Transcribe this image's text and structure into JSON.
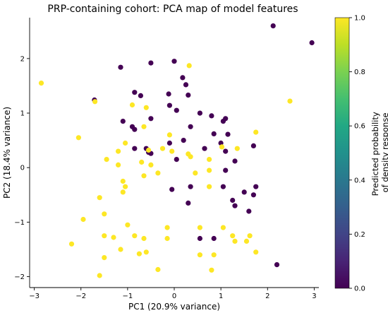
{
  "chart_data": {
    "type": "scatter",
    "title": "PRP-containing cohort: PCA map of model features",
    "xlabel": "PC1 (20.9% variance)",
    "ylabel": "PC2 (18.4% variance)",
    "xlim": [
      -3.1,
      3.1
    ],
    "ylim": [
      -2.2,
      2.75
    ],
    "x_ticks": [
      -3,
      -2,
      -1,
      0,
      1,
      2,
      3
    ],
    "y_ticks": [
      -2,
      -1,
      0,
      1,
      2
    ],
    "grid": false,
    "colorbar": {
      "label_lines": [
        "Predicted probability",
        "of density response"
      ],
      "ticks": [
        0.0,
        0.2,
        0.4,
        0.6,
        0.8,
        1.0
      ],
      "range": [
        0.0,
        1.0
      ],
      "colormap": "viridis"
    },
    "colors": {
      "class_high": "#fde725",
      "class_low": "#440154"
    },
    "points": [
      {
        "x": 2.12,
        "y": 2.6,
        "p": 0
      },
      {
        "x": 2.95,
        "y": 2.29,
        "p": 0
      },
      {
        "x": -2.85,
        "y": 1.55,
        "p": 1
      },
      {
        "x": -1.71,
        "y": 1.24,
        "p": 0
      },
      {
        "x": -1.7,
        "y": 1.21,
        "p": 1
      },
      {
        "x": -1.15,
        "y": 1.84,
        "p": 0
      },
      {
        "x": -0.5,
        "y": 1.92,
        "p": 0
      },
      {
        "x": 0.0,
        "y": 1.95,
        "p": 0
      },
      {
        "x": 0.32,
        "y": 1.87,
        "p": 1
      },
      {
        "x": 0.18,
        "y": 1.65,
        "p": 0
      },
      {
        "x": 0.25,
        "y": 1.52,
        "p": 0
      },
      {
        "x": 2.48,
        "y": 1.22,
        "p": 1
      },
      {
        "x": -0.85,
        "y": 1.38,
        "p": 0
      },
      {
        "x": -0.72,
        "y": 1.32,
        "p": 0
      },
      {
        "x": -0.12,
        "y": 1.35,
        "p": 0
      },
      {
        "x": 0.3,
        "y": 1.33,
        "p": 0
      },
      {
        "x": -0.1,
        "y": 1.14,
        "p": 0
      },
      {
        "x": 0.05,
        "y": 1.05,
        "p": 0
      },
      {
        "x": 0.55,
        "y": 1.0,
        "p": 0
      },
      {
        "x": 0.8,
        "y": 0.95,
        "p": 0
      },
      {
        "x": -0.9,
        "y": 1.15,
        "p": 1
      },
      {
        "x": -0.6,
        "y": 1.1,
        "p": 1
      },
      {
        "x": -1.1,
        "y": 0.85,
        "p": 0
      },
      {
        "x": -0.9,
        "y": 0.75,
        "p": 0
      },
      {
        "x": -0.5,
        "y": 0.9,
        "p": 0
      },
      {
        "x": 0.35,
        "y": 0.75,
        "p": 0
      },
      {
        "x": 1.1,
        "y": 0.9,
        "p": 0
      },
      {
        "x": 1.05,
        "y": 0.85,
        "p": 0
      },
      {
        "x": -0.85,
        "y": 0.7,
        "p": 0
      },
      {
        "x": -0.65,
        "y": 0.75,
        "p": 1
      },
      {
        "x": -0.1,
        "y": 0.6,
        "p": 1
      },
      {
        "x": 0.85,
        "y": 0.62,
        "p": 0
      },
      {
        "x": 1.15,
        "y": 0.61,
        "p": 0
      },
      {
        "x": 1.75,
        "y": 0.65,
        "p": 1
      },
      {
        "x": -1.05,
        "y": 0.45,
        "p": 1
      },
      {
        "x": -0.1,
        "y": 0.45,
        "p": 0
      },
      {
        "x": 0.2,
        "y": 0.5,
        "p": 0
      },
      {
        "x": 1.0,
        "y": 0.45,
        "p": 0
      },
      {
        "x": 1.02,
        "y": 0.38,
        "p": 1
      },
      {
        "x": 1.7,
        "y": 0.4,
        "p": 0
      },
      {
        "x": -0.85,
        "y": 0.35,
        "p": 0
      },
      {
        "x": -0.6,
        "y": 0.35,
        "p": 0
      },
      {
        "x": -0.55,
        "y": 0.28,
        "p": 0
      },
      {
        "x": -0.5,
        "y": 0.26,
        "p": 0
      },
      {
        "x": -1.2,
        "y": 0.3,
        "p": 1
      },
      {
        "x": -0.55,
        "y": 0.32,
        "p": 1
      },
      {
        "x": -0.25,
        "y": 0.35,
        "p": 1
      },
      {
        "x": -0.05,
        "y": 0.3,
        "p": 1
      },
      {
        "x": 0.3,
        "y": 0.25,
        "p": 1
      },
      {
        "x": 0.65,
        "y": 0.35,
        "p": 0
      },
      {
        "x": 1.1,
        "y": 0.3,
        "p": 0
      },
      {
        "x": 1.35,
        "y": 0.35,
        "p": 1
      },
      {
        "x": -2.05,
        "y": 0.55,
        "p": 1
      },
      {
        "x": -1.45,
        "y": 0.15,
        "p": 1
      },
      {
        "x": -1.2,
        "y": 0.05,
        "p": 1
      },
      {
        "x": -0.7,
        "y": 0.1,
        "p": 1
      },
      {
        "x": -0.5,
        "y": 0.05,
        "p": 1
      },
      {
        "x": 0.05,
        "y": 0.15,
        "p": 0
      },
      {
        "x": 0.35,
        "y": 0.2,
        "p": 1
      },
      {
        "x": 0.75,
        "y": 0.15,
        "p": 1
      },
      {
        "x": 1.3,
        "y": 0.12,
        "p": 0
      },
      {
        "x": -1.1,
        "y": -0.25,
        "p": 1
      },
      {
        "x": -0.65,
        "y": -0.15,
        "p": 1
      },
      {
        "x": -0.35,
        "y": -0.1,
        "p": 1
      },
      {
        "x": 0.45,
        "y": -0.1,
        "p": 1
      },
      {
        "x": 0.75,
        "y": -0.05,
        "p": 1
      },
      {
        "x": 1.1,
        "y": -0.05,
        "p": 0
      },
      {
        "x": -1.6,
        "y": -0.55,
        "p": 1
      },
      {
        "x": -1.05,
        "y": -0.35,
        "p": 1
      },
      {
        "x": -0.05,
        "y": -0.4,
        "p": 0
      },
      {
        "x": 0.35,
        "y": -0.35,
        "p": 0
      },
      {
        "x": 0.75,
        "y": -0.35,
        "p": 1
      },
      {
        "x": 1.05,
        "y": -0.35,
        "p": 0
      },
      {
        "x": 1.5,
        "y": -0.45,
        "p": 0
      },
      {
        "x": 1.75,
        "y": -0.35,
        "p": 0
      },
      {
        "x": -1.1,
        "y": -0.45,
        "p": 1
      },
      {
        "x": 1.25,
        "y": -0.6,
        "p": 0
      },
      {
        "x": 1.7,
        "y": -0.5,
        "p": 0
      },
      {
        "x": 1.3,
        "y": -0.7,
        "p": 0
      },
      {
        "x": -1.5,
        "y": -0.85,
        "p": 1
      },
      {
        "x": 0.3,
        "y": -0.65,
        "p": 0
      },
      {
        "x": 1.6,
        "y": -0.8,
        "p": 0
      },
      {
        "x": -1.95,
        "y": -0.95,
        "p": 1
      },
      {
        "x": -1.0,
        "y": -1.05,
        "p": 1
      },
      {
        "x": -0.15,
        "y": -1.1,
        "p": 1
      },
      {
        "x": 0.55,
        "y": -1.1,
        "p": 1
      },
      {
        "x": 1.05,
        "y": -1.1,
        "p": 1
      },
      {
        "x": -1.5,
        "y": -1.25,
        "p": 1
      },
      {
        "x": -1.3,
        "y": -1.28,
        "p": 1
      },
      {
        "x": -0.85,
        "y": -1.25,
        "p": 1
      },
      {
        "x": -0.65,
        "y": -1.3,
        "p": 1
      },
      {
        "x": -0.15,
        "y": -1.3,
        "p": 1
      },
      {
        "x": 0.55,
        "y": -1.3,
        "p": 0
      },
      {
        "x": 0.85,
        "y": -1.3,
        "p": 0
      },
      {
        "x": 1.25,
        "y": -1.25,
        "p": 1
      },
      {
        "x": 1.62,
        "y": -1.25,
        "p": 1
      },
      {
        "x": -2.2,
        "y": -1.4,
        "p": 1
      },
      {
        "x": -1.15,
        "y": -1.5,
        "p": 1
      },
      {
        "x": -0.6,
        "y": -1.55,
        "p": 1
      },
      {
        "x": 1.3,
        "y": -1.35,
        "p": 1
      },
      {
        "x": 1.55,
        "y": -1.35,
        "p": 1
      },
      {
        "x": -1.5,
        "y": -1.65,
        "p": 1
      },
      {
        "x": -0.75,
        "y": -1.58,
        "p": 1
      },
      {
        "x": 0.55,
        "y": -1.6,
        "p": 1
      },
      {
        "x": 0.85,
        "y": -1.6,
        "p": 1
      },
      {
        "x": 1.75,
        "y": -1.55,
        "p": 1
      },
      {
        "x": 2.2,
        "y": -1.78,
        "p": 0
      },
      {
        "x": -0.35,
        "y": -1.87,
        "p": 1
      },
      {
        "x": 0.8,
        "y": -1.88,
        "p": 1
      },
      {
        "x": -1.6,
        "y": -1.98,
        "p": 1
      }
    ]
  }
}
